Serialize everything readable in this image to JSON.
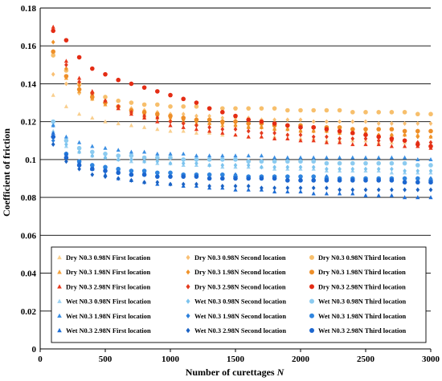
{
  "chart_data": {
    "type": "scatter",
    "xlabel": "Number  of curettages",
    "xlabel_var": "N",
    "ylabel": "Coefficient of friction",
    "xlim": [
      0,
      3000
    ],
    "ylim": [
      0,
      0.18
    ],
    "x_ticks": [
      "0",
      "500",
      "1000",
      "1500",
      "2000",
      "2500",
      "3000"
    ],
    "y_ticks": [
      "0",
      "0.02",
      "0.04",
      "0.06",
      "0.08",
      "0.1",
      "0.12",
      "0.14",
      "0.16",
      "0.18"
    ],
    "grid": "horizontal",
    "legend_placement": "bottom-inside",
    "x": [
      100,
      200,
      300,
      400,
      500,
      600,
      700,
      800,
      900,
      1000,
      1100,
      1200,
      1300,
      1400,
      1500,
      1600,
      1700,
      1800,
      1900,
      2000,
      2100,
      2200,
      2300,
      2400,
      2500,
      2600,
      2700,
      2800,
      2900,
      3000
    ],
    "series": [
      {
        "name": "Dry N0.3 0.98N First location",
        "marker": "triangle",
        "color": "#f9cf8e",
        "values": [
          0.134,
          0.128,
          0.124,
          0.122,
          0.12,
          0.119,
          0.118,
          0.117,
          0.116,
          0.115,
          0.115,
          0.114,
          0.114,
          0.113,
          0.113,
          0.112,
          0.112,
          0.112,
          0.111,
          0.111,
          0.111,
          0.11,
          0.11,
          0.11,
          0.11,
          0.109,
          0.109,
          0.109,
          0.109,
          0.108
        ]
      },
      {
        "name": "Dry N0.3 0.98N Second location",
        "marker": "diamond",
        "color": "#f9c074",
        "values": [
          0.145,
          0.14,
          0.135,
          0.132,
          0.13,
          0.128,
          0.127,
          0.126,
          0.125,
          0.124,
          0.124,
          0.123,
          0.123,
          0.122,
          0.122,
          0.122,
          0.121,
          0.121,
          0.121,
          0.121,
          0.12,
          0.12,
          0.12,
          0.12,
          0.12,
          0.119,
          0.119,
          0.119,
          0.119,
          0.119
        ]
      },
      {
        "name": "Dry N0.3 0.98N Third location",
        "marker": "circle",
        "color": "#f7bf6c",
        "values": [
          0.155,
          0.147,
          0.14,
          0.135,
          0.133,
          0.131,
          0.13,
          0.129,
          0.129,
          0.128,
          0.128,
          0.128,
          0.127,
          0.127,
          0.127,
          0.127,
          0.127,
          0.127,
          0.126,
          0.126,
          0.126,
          0.126,
          0.126,
          0.125,
          0.125,
          0.125,
          0.125,
          0.125,
          0.124,
          0.124
        ]
      },
      {
        "name": "Dry N0.3 1.98N First location",
        "marker": "triangle",
        "color": "#f4a23c",
        "values": [
          0.157,
          0.143,
          0.136,
          0.132,
          0.129,
          0.127,
          0.125,
          0.123,
          0.122,
          0.121,
          0.12,
          0.119,
          0.119,
          0.118,
          0.118,
          0.117,
          0.117,
          0.116,
          0.116,
          0.115,
          0.115,
          0.115,
          0.114,
          0.114,
          0.114,
          0.113,
          0.113,
          0.113,
          0.113,
          0.112
        ]
      },
      {
        "name": "Dry N0.3 1.98N Second location",
        "marker": "diamond",
        "color": "#f0932a",
        "values": [
          0.162,
          0.148,
          0.139,
          0.134,
          0.13,
          0.128,
          0.126,
          0.124,
          0.123,
          0.122,
          0.121,
          0.12,
          0.119,
          0.119,
          0.118,
          0.117,
          0.117,
          0.116,
          0.116,
          0.115,
          0.115,
          0.115,
          0.114,
          0.114,
          0.114,
          0.113,
          0.113,
          0.113,
          0.112,
          0.112
        ]
      },
      {
        "name": "Dry N0.3 1.98N Third location",
        "marker": "circle",
        "color": "#ee8f29",
        "values": [
          0.157,
          0.144,
          0.137,
          0.133,
          0.13,
          0.128,
          0.126,
          0.125,
          0.124,
          0.123,
          0.122,
          0.121,
          0.121,
          0.12,
          0.12,
          0.119,
          0.119,
          0.118,
          0.118,
          0.118,
          0.117,
          0.117,
          0.117,
          0.116,
          0.116,
          0.116,
          0.116,
          0.115,
          0.115,
          0.115
        ]
      },
      {
        "name": "Dry N0.3 2.98N First location",
        "marker": "triangle",
        "color": "#e8381c",
        "values": [
          0.17,
          0.152,
          0.143,
          0.136,
          0.131,
          0.127,
          0.124,
          0.122,
          0.12,
          0.118,
          0.117,
          0.116,
          0.115,
          0.114,
          0.113,
          0.112,
          0.112,
          0.111,
          0.111,
          0.11,
          0.11,
          0.109,
          0.109,
          0.108,
          0.108,
          0.108,
          0.107,
          0.107,
          0.107,
          0.106
        ]
      },
      {
        "name": "Dry N0.3 2.98N Second location",
        "marker": "diamond",
        "color": "#e43a1e",
        "values": [
          0.168,
          0.15,
          0.141,
          0.135,
          0.131,
          0.128,
          0.125,
          0.123,
          0.122,
          0.12,
          0.119,
          0.118,
          0.117,
          0.116,
          0.116,
          0.115,
          0.114,
          0.114,
          0.113,
          0.113,
          0.112,
          0.112,
          0.111,
          0.111,
          0.111,
          0.11,
          0.11,
          0.11,
          0.109,
          0.109
        ]
      },
      {
        "name": "Dry N0.3 2.98N Third location",
        "marker": "circle",
        "color": "#e42c14",
        "values": [
          0.168,
          0.163,
          0.154,
          0.148,
          0.145,
          0.142,
          0.14,
          0.138,
          0.136,
          0.134,
          0.132,
          0.13,
          0.127,
          0.125,
          0.123,
          0.121,
          0.12,
          0.119,
          0.118,
          0.117,
          0.117,
          0.116,
          0.115,
          0.114,
          0.113,
          0.112,
          0.111,
          0.11,
          0.108,
          0.107
        ]
      },
      {
        "name": "Wet N0.3 0.98N First location",
        "marker": "triangle",
        "color": "#9dd2f2",
        "values": [
          0.115,
          0.107,
          0.104,
          0.102,
          0.101,
          0.1,
          0.099,
          0.099,
          0.098,
          0.098,
          0.097,
          0.097,
          0.097,
          0.096,
          0.096,
          0.096,
          0.096,
          0.095,
          0.095,
          0.095,
          0.095,
          0.094,
          0.094,
          0.094,
          0.094,
          0.094,
          0.093,
          0.093,
          0.093,
          0.093
        ]
      },
      {
        "name": "Wet N0.3 0.98N Second location",
        "marker": "diamond",
        "color": "#7cc3ee",
        "values": [
          0.118,
          0.108,
          0.104,
          0.102,
          0.101,
          0.1,
          0.1,
          0.099,
          0.099,
          0.098,
          0.098,
          0.098,
          0.097,
          0.097,
          0.097,
          0.097,
          0.096,
          0.096,
          0.096,
          0.096,
          0.096,
          0.095,
          0.095,
          0.095,
          0.095,
          0.095,
          0.095,
          0.094,
          0.094,
          0.094
        ]
      },
      {
        "name": "Wet N0.3 0.98N Third location",
        "marker": "circle",
        "color": "#8ccbf0",
        "values": [
          0.12,
          0.11,
          0.106,
          0.104,
          0.103,
          0.102,
          0.102,
          0.101,
          0.101,
          0.101,
          0.1,
          0.1,
          0.1,
          0.1,
          0.1,
          0.099,
          0.099,
          0.099,
          0.099,
          0.099,
          0.099,
          0.098,
          0.098,
          0.098,
          0.098,
          0.098,
          0.098,
          0.098,
          0.097,
          0.097
        ]
      },
      {
        "name": "Wet N0.3 1.98N First location",
        "marker": "triangle",
        "color": "#3b8fe3",
        "values": [
          0.118,
          0.112,
          0.109,
          0.107,
          0.106,
          0.105,
          0.104,
          0.104,
          0.103,
          0.103,
          0.103,
          0.102,
          0.102,
          0.102,
          0.102,
          0.102,
          0.102,
          0.101,
          0.101,
          0.101,
          0.101,
          0.101,
          0.101,
          0.101,
          0.101,
          0.101,
          0.101,
          0.101,
          0.1,
          0.1
        ]
      },
      {
        "name": "Wet N0.3 1.98N Second location",
        "marker": "diamond",
        "color": "#2c7fdb",
        "values": [
          0.11,
          0.101,
          0.098,
          0.096,
          0.095,
          0.094,
          0.094,
          0.093,
          0.093,
          0.093,
          0.092,
          0.092,
          0.092,
          0.092,
          0.092,
          0.091,
          0.091,
          0.091,
          0.091,
          0.091,
          0.091,
          0.091,
          0.09,
          0.09,
          0.09,
          0.09,
          0.09,
          0.09,
          0.09,
          0.09
        ]
      },
      {
        "name": "Wet N0.3 1.98N Third location",
        "marker": "circle",
        "color": "#2f85df",
        "values": [
          0.112,
          0.103,
          0.099,
          0.097,
          0.096,
          0.095,
          0.094,
          0.094,
          0.093,
          0.093,
          0.092,
          0.092,
          0.092,
          0.092,
          0.091,
          0.091,
          0.091,
          0.091,
          0.091,
          0.091,
          0.091,
          0.09,
          0.09,
          0.09,
          0.09,
          0.09,
          0.09,
          0.09,
          0.09,
          0.089
        ]
      },
      {
        "name": "Wet N0.3 2.98N First location",
        "marker": "triangle",
        "color": "#1e6ed6",
        "values": [
          0.114,
          0.103,
          0.098,
          0.095,
          0.092,
          0.09,
          0.089,
          0.088,
          0.087,
          0.087,
          0.086,
          0.086,
          0.085,
          0.085,
          0.084,
          0.084,
          0.084,
          0.083,
          0.083,
          0.083,
          0.082,
          0.082,
          0.082,
          0.082,
          0.081,
          0.081,
          0.081,
          0.08,
          0.08,
          0.08
        ]
      },
      {
        "name": "Wet N0.3 2.98N Second location",
        "marker": "diamond",
        "color": "#1a62c4",
        "values": [
          0.108,
          0.099,
          0.095,
          0.092,
          0.091,
          0.09,
          0.089,
          0.088,
          0.088,
          0.087,
          0.087,
          0.087,
          0.086,
          0.086,
          0.086,
          0.086,
          0.085,
          0.085,
          0.085,
          0.085,
          0.085,
          0.085,
          0.084,
          0.084,
          0.084,
          0.084,
          0.084,
          0.084,
          0.084,
          0.084
        ]
      },
      {
        "name": "Wet N0.3 2.98N Third location",
        "marker": "circle",
        "color": "#1c66cf",
        "values": [
          0.112,
          0.101,
          0.097,
          0.095,
          0.094,
          0.093,
          0.092,
          0.092,
          0.091,
          0.091,
          0.091,
          0.091,
          0.09,
          0.09,
          0.09,
          0.09,
          0.09,
          0.09,
          0.089,
          0.089,
          0.089,
          0.089,
          0.089,
          0.089,
          0.089,
          0.089,
          0.089,
          0.088,
          0.088,
          0.088
        ]
      }
    ]
  }
}
